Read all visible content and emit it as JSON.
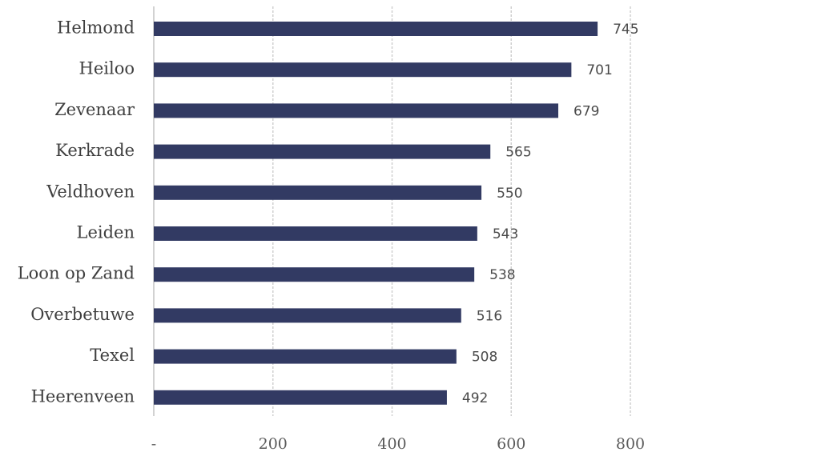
{
  "chart_data": {
    "type": "bar",
    "orientation": "horizontal",
    "categories": [
      "Helmond",
      "Heiloo",
      "Zevenaar",
      "Kerkrade",
      "Veldhoven",
      "Leiden",
      "Loon op Zand",
      "Overbetuwe",
      "Texel",
      "Heerenveen"
    ],
    "values": [
      745,
      701,
      679,
      565,
      550,
      543,
      538,
      516,
      508,
      492
    ],
    "value_labels": [
      "745",
      "701",
      "679",
      "565",
      "550",
      "543",
      "538",
      "516",
      "508",
      "492"
    ],
    "xlim": [
      0,
      800
    ],
    "x_ticks": [
      0,
      200,
      400,
      600,
      800
    ],
    "x_tick_labels": [
      "-",
      "200",
      "400",
      "600",
      "800"
    ],
    "grid": true,
    "title": "",
    "xlabel": "",
    "ylabel": "",
    "colors": {
      "bar": "#323a63",
      "grid": "#cfcfcf"
    }
  }
}
